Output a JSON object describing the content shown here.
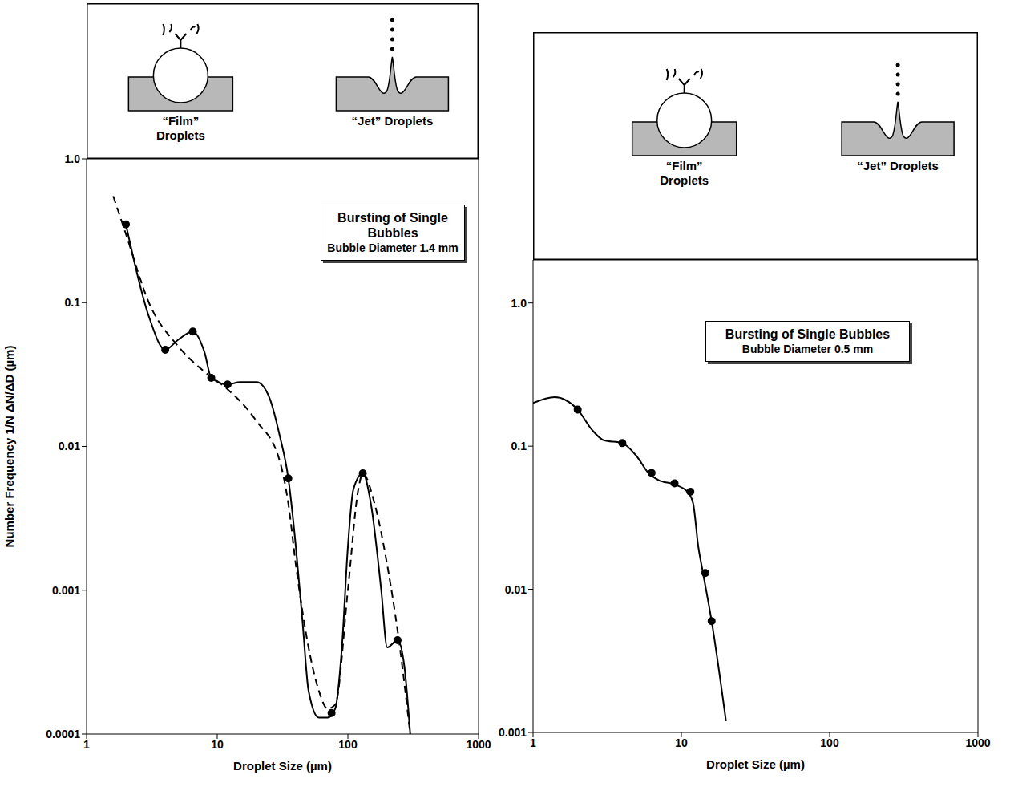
{
  "chart_data": [
    {
      "type": "line",
      "title": "Bursting of Single Bubbles",
      "subtitle": "Bubble Diameter 1.4 mm",
      "annotations": [
        "“Film” Droplets",
        "“Jet” Droplets"
      ],
      "x_label": "Droplet Size (µm)",
      "y_label": "Number Frequency 1/N ΔN/ΔD (µm)",
      "log": true,
      "grid": false,
      "xlim": [
        1,
        1000
      ],
      "xticks": [
        1,
        10,
        100,
        1000
      ],
      "ylim": [
        0.0001,
        1
      ],
      "yticks": [
        0.0001,
        0.001,
        0.01,
        0.1,
        {
          "value": 1,
          "label": "1.0"
        }
      ],
      "series": [
        {
          "color": "#000000",
          "line_style": "solid",
          "marker": "none",
          "x": [
            2,
            3,
            4,
            5,
            6.5,
            8,
            9,
            12,
            15,
            20,
            25,
            30,
            35,
            40,
            45,
            50,
            60,
            70,
            80,
            90,
            100,
            110,
            130,
            150,
            180,
            200,
            240,
            270,
            300
          ],
          "values": [
            0.35,
            0.08,
            0.047,
            0.055,
            0.063,
            0.045,
            0.03,
            0.027,
            0.028,
            0.028,
            0.022,
            0.012,
            0.006,
            0.002,
            0.0006,
            0.0002,
            0.00013,
            0.00013,
            0.00015,
            0.0004,
            0.002,
            0.005,
            0.0065,
            0.004,
            0.001,
            0.0004,
            0.00045,
            0.0003,
            0.0001
          ]
        },
        {
          "color": "#000000",
          "line_style": "dashed",
          "marker": "none",
          "x": [
            1.6,
            2,
            3,
            5,
            8,
            12,
            20,
            30,
            35,
            40,
            50,
            60,
            70,
            80,
            100,
            120,
            130,
            160,
            200,
            250,
            300
          ],
          "values": [
            0.55,
            0.3,
            0.1,
            0.05,
            0.033,
            0.025,
            0.015,
            0.008,
            0.004,
            0.0015,
            0.0004,
            0.0002,
            0.00015,
            0.00016,
            0.001,
            0.005,
            0.0065,
            0.004,
            0.0015,
            0.0004,
            0.0001
          ]
        },
        {
          "color": "#000000",
          "line_style": "none",
          "marker": "circle",
          "x": [
            2,
            4,
            6.5,
            9,
            12,
            35,
            75,
            130,
            240
          ],
          "values": [
            0.35,
            0.047,
            0.063,
            0.03,
            0.027,
            0.006,
            0.00014,
            0.0065,
            0.00045
          ]
        }
      ]
    },
    {
      "type": "line",
      "title": "Bursting of Single Bubbles",
      "subtitle": "Bubble Diameter 0.5 mm",
      "annotations": [
        "“Film” Droplets",
        "“Jet” Droplets"
      ],
      "x_label": "Droplet Size (µm)",
      "log": true,
      "grid": false,
      "xlim": [
        1,
        1000
      ],
      "xticks": [
        1,
        10,
        100,
        1000
      ],
      "ylim": [
        0.001,
        2
      ],
      "yticks": [
        0.001,
        0.01,
        0.1,
        {
          "value": 1,
          "label": "1.0"
        }
      ],
      "series": [
        {
          "color": "#000000",
          "line_style": "solid",
          "marker": "none",
          "x": [
            1,
            1.4,
            2,
            2.5,
            3,
            4,
            5,
            6,
            7,
            9,
            11,
            12,
            13,
            14,
            16,
            20
          ],
          "values": [
            0.2,
            0.22,
            0.18,
            0.13,
            0.11,
            0.105,
            0.085,
            0.065,
            0.058,
            0.054,
            0.048,
            0.04,
            0.02,
            0.013,
            0.006,
            0.0012
          ]
        },
        {
          "color": "#000000",
          "line_style": "none",
          "marker": "circle",
          "x": [
            2,
            4,
            6.3,
            9,
            11.5,
            14.5,
            16
          ],
          "values": [
            0.18,
            0.105,
            0.065,
            0.055,
            0.048,
            0.013,
            0.006
          ]
        }
      ]
    }
  ]
}
